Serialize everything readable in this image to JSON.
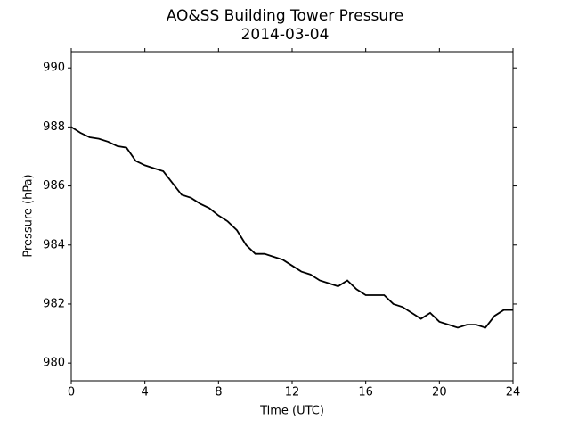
{
  "chart_data": {
    "type": "line",
    "title": "AO&SS Building Tower Pressure",
    "subtitle": "2014-03-04",
    "x_label": "Time (UTC)",
    "y_label": "Pressure (hPa)",
    "x": [
      0,
      0.5,
      1,
      1.5,
      2,
      2.5,
      3,
      3.5,
      4,
      4.5,
      5,
      5.5,
      6,
      6.5,
      7,
      7.5,
      8,
      8.5,
      9,
      9.5,
      10,
      10.5,
      11,
      11.5,
      12,
      12.5,
      13,
      13.5,
      14,
      14.5,
      15,
      15.5,
      16,
      16.5,
      17,
      17.5,
      18,
      18.5,
      19,
      19.5,
      20,
      20.5,
      21,
      21.5,
      22,
      22.5,
      23,
      23.5,
      24
    ],
    "series": [
      {
        "name": "Pressure",
        "color": "#000000",
        "values": [
          988.0,
          987.8,
          987.65,
          987.6,
          987.5,
          987.35,
          987.3,
          986.85,
          986.7,
          986.6,
          986.5,
          986.1,
          985.7,
          985.6,
          985.4,
          985.25,
          985.0,
          984.8,
          984.5,
          984.0,
          983.7,
          983.7,
          983.6,
          983.5,
          983.3,
          983.1,
          983.0,
          982.8,
          982.7,
          982.6,
          982.8,
          982.5,
          982.3,
          982.3,
          982.3,
          982.0,
          981.9,
          981.7,
          981.5,
          981.7,
          981.4,
          981.3,
          981.2,
          981.3,
          981.3,
          981.2,
          981.6,
          981.8,
          981.8
        ]
      }
    ],
    "xlim": [
      0,
      24
    ],
    "xticks": [
      0,
      4,
      8,
      12,
      16,
      20,
      24
    ],
    "ylim": [
      979.4,
      990.55
    ],
    "yticks": [
      980,
      982,
      984,
      986,
      988,
      990
    ]
  }
}
